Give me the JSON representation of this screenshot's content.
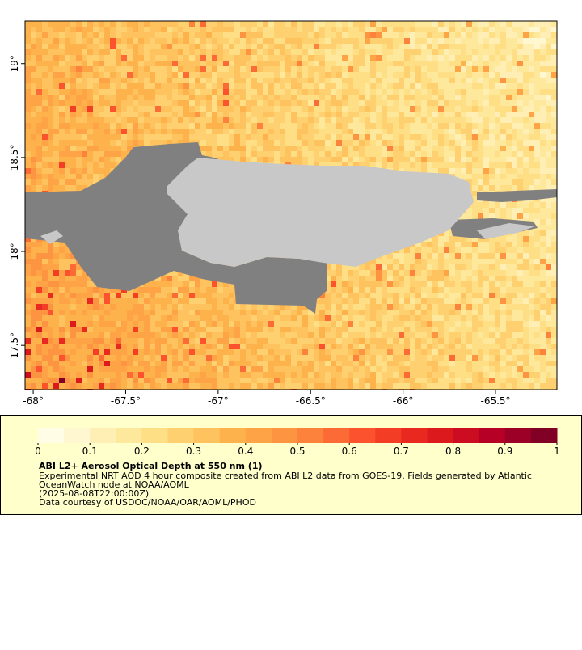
{
  "map": {
    "lon_range": [
      -68.044,
      -65.168
    ],
    "lat_range": [
      17.264,
      19.227
    ],
    "x_ticks": [
      {
        "value": -68,
        "label": "-68°"
      },
      {
        "value": -67.5,
        "label": "-67.5°"
      },
      {
        "value": -67,
        "label": "-67°"
      },
      {
        "value": -66.5,
        "label": "-66.5°"
      },
      {
        "value": -66,
        "label": "-66°"
      },
      {
        "value": -65.5,
        "label": "-65.5°"
      }
    ],
    "y_ticks": [
      {
        "value": 19,
        "label": "19°"
      },
      {
        "value": 18.5,
        "label": "18.5°"
      },
      {
        "value": 18,
        "label": "18°"
      },
      {
        "value": 17.5,
        "label": "17.5°"
      }
    ]
  },
  "colorbar": {
    "range": [
      0,
      1
    ],
    "ticks": [
      0,
      0.1,
      0.2,
      0.3,
      0.4,
      0.5,
      0.6,
      0.7,
      0.8,
      0.9,
      1
    ],
    "colors": [
      "#fffde6",
      "#fff7cf",
      "#ffefb5",
      "#fee89c",
      "#fedf86",
      "#fed070",
      "#fec25e",
      "#feb24c",
      "#fea446",
      "#fd9441",
      "#fd833c",
      "#fc6b35",
      "#fc532e",
      "#f43d25",
      "#e9291f",
      "#dc1a1d",
      "#cb0c21",
      "#b70026",
      "#9c0026",
      "#800026"
    ]
  },
  "caption": {
    "title": "ABI L2+ Aerosol Optical Depth at 550 nm (1)",
    "lines": [
      "Experimental NRT AOD 4 hour composite created from ABI L2 data from GOES-19. Fields generated by Atlantic",
      "OceanWatch node at NOAA/AOML",
      "(2025-08-08T22:00:00Z)",
      "Data courtesy of USDOC/NOAA/OAR/AOML/PHOD"
    ]
  }
}
